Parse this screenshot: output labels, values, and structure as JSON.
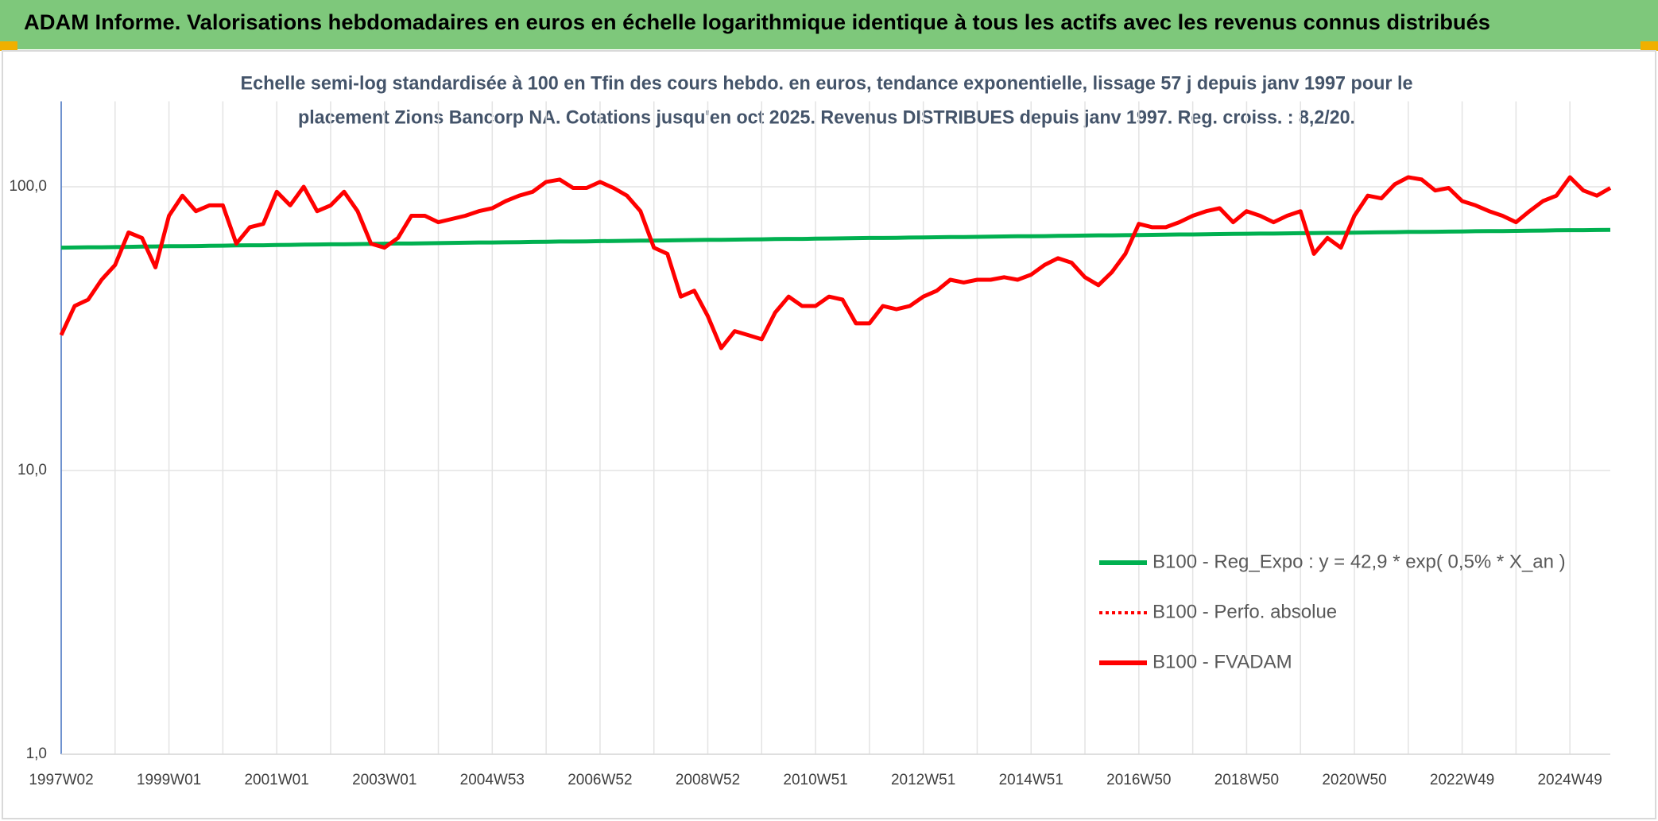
{
  "chart_data": {
    "type": "line",
    "title": "ADAM Informe. Valorisations hebdomadaires en euros en échelle logarithmique identique à tous les actifs avec les revenus connus distribués",
    "subtitle": [
      "Echelle semi-log standardisée à 100 en Tfin des cours hebdo. en euros, tendance exponentielle, lissage 57 j depuis janv 1997 pour le",
      "placement Zions Bancorp NA. Cotations jusqu'en oct 2025. Revenus DISTRIBUES depuis janv 1997. Reg. croiss. : 8,2/20."
    ],
    "categories": [
      "1997W02",
      null,
      null,
      null,
      null,
      null,
      null,
      null,
      "1999W01",
      null,
      null,
      null,
      null,
      null,
      null,
      null,
      "2001W01",
      null,
      null,
      null,
      null,
      null,
      null,
      null,
      "2003W01",
      null,
      null,
      null,
      null,
      null,
      null,
      null,
      "2004W53",
      null,
      null,
      null,
      null,
      null,
      null,
      null,
      "2006W52",
      null,
      null,
      null,
      null,
      null,
      null,
      null,
      "2008W52",
      null,
      null,
      null,
      null,
      null,
      null,
      null,
      "2010W51",
      null,
      null,
      null,
      null,
      null,
      null,
      null,
      "2012W51",
      null,
      null,
      null,
      null,
      null,
      null,
      null,
      "2014W51",
      null,
      null,
      null,
      null,
      null,
      null,
      null,
      "2016W50",
      null,
      null,
      null,
      null,
      null,
      null,
      null,
      "2018W50",
      null,
      null,
      null,
      null,
      null,
      null,
      null,
      "2020W50",
      null,
      null,
      null,
      null,
      null,
      null,
      null,
      "2022W49",
      null,
      null,
      null,
      null,
      null,
      null,
      null,
      "2024W49",
      null,
      null,
      null
    ],
    "series": [
      {
        "name": "B100 - Reg_Expo : y = 42,9 * exp( 0,5% *  X_an )",
        "color": "#00b050",
        "style": "solid",
        "values": [
          61.0,
          61.1,
          61.2,
          61.2,
          61.3,
          61.4,
          61.5,
          61.6,
          61.7,
          61.7,
          61.8,
          61.9,
          62.0,
          62.1,
          62.2,
          62.2,
          62.3,
          62.4,
          62.5,
          62.6,
          62.7,
          62.7,
          62.8,
          62.9,
          63.0,
          63.1,
          63.1,
          63.2,
          63.3,
          63.4,
          63.5,
          63.6,
          63.6,
          63.7,
          63.8,
          63.9,
          64.0,
          64.1,
          64.1,
          64.2,
          64.3,
          64.4,
          64.5,
          64.6,
          64.6,
          64.7,
          64.8,
          64.9,
          65.0,
          65.0,
          65.1,
          65.2,
          65.3,
          65.4,
          65.5,
          65.5,
          65.6,
          65.7,
          65.8,
          65.9,
          66.0,
          66.0,
          66.1,
          66.2,
          66.3,
          66.4,
          66.5,
          66.5,
          66.6,
          66.7,
          66.8,
          66.9,
          66.9,
          67.0,
          67.1,
          67.2,
          67.3,
          67.4,
          67.4,
          67.5,
          67.6,
          67.7,
          67.8,
          67.9,
          67.9,
          68.0,
          68.1,
          68.2,
          68.3,
          68.4,
          68.4,
          68.5,
          68.6,
          68.7,
          68.8,
          68.8,
          68.9,
          69.0,
          69.1,
          69.2,
          69.3,
          69.3,
          69.4,
          69.5,
          69.6,
          69.7,
          69.8,
          69.8,
          69.9,
          70.0,
          70.1,
          70.2,
          70.3,
          70.3,
          70.4,
          70.5
        ]
      },
      {
        "name": "B100 - Perfo. absolue",
        "color": "#ff0000",
        "style": "dotted",
        "values": [
          30,
          38,
          40,
          47,
          53,
          69,
          66,
          52,
          79,
          93,
          82,
          86,
          86,
          63,
          72,
          74,
          96,
          86,
          100,
          82,
          86,
          96,
          82,
          63,
          61,
          66,
          79,
          79,
          75,
          77,
          79,
          82,
          84,
          89,
          93,
          96,
          104,
          106,
          99,
          99,
          104,
          99,
          93,
          82,
          61,
          58,
          41,
          43,
          35,
          27,
          31,
          30,
          29,
          36,
          41,
          38,
          38,
          41,
          40,
          33,
          33,
          38,
          37,
          38,
          41,
          43,
          47,
          46,
          47,
          47,
          48,
          47,
          49,
          53,
          56,
          54,
          48,
          45,
          50,
          58,
          74,
          72,
          72,
          75,
          79,
          82,
          84,
          75,
          82,
          79,
          75,
          79,
          82,
          58,
          66,
          61,
          79,
          93,
          91,
          102,
          108,
          106,
          97,
          99,
          89,
          86,
          82,
          79,
          75,
          82,
          89,
          93,
          108,
          97,
          93,
          99
        ]
      },
      {
        "name": "B100 - FVADAM",
        "color": "#ff0000",
        "style": "solid",
        "values": [
          30,
          38,
          40,
          47,
          53,
          69,
          66,
          52,
          79,
          93,
          82,
          86,
          86,
          63,
          72,
          74,
          96,
          86,
          100,
          82,
          86,
          96,
          82,
          63,
          61,
          66,
          79,
          79,
          75,
          77,
          79,
          82,
          84,
          89,
          93,
          96,
          104,
          106,
          99,
          99,
          104,
          99,
          93,
          82,
          61,
          58,
          41,
          43,
          35,
          27,
          31,
          30,
          29,
          36,
          41,
          38,
          38,
          41,
          40,
          33,
          33,
          38,
          37,
          38,
          41,
          43,
          47,
          46,
          47,
          47,
          48,
          47,
          49,
          53,
          56,
          54,
          48,
          45,
          50,
          58,
          74,
          72,
          72,
          75,
          79,
          82,
          84,
          75,
          82,
          79,
          75,
          79,
          82,
          58,
          66,
          61,
          79,
          93,
          91,
          102,
          108,
          106,
          97,
          99,
          89,
          86,
          82,
          79,
          75,
          82,
          89,
          93,
          108,
          97,
          93,
          99
        ]
      }
    ],
    "log_scale": true,
    "ylim": [
      1,
      200
    ],
    "yticks": [
      {
        "value": 1,
        "label": "1,0"
      },
      {
        "value": 10,
        "label": "10,0"
      },
      {
        "value": 100,
        "label": "100,0"
      }
    ],
    "grid": true,
    "legend": "bottom-right"
  }
}
